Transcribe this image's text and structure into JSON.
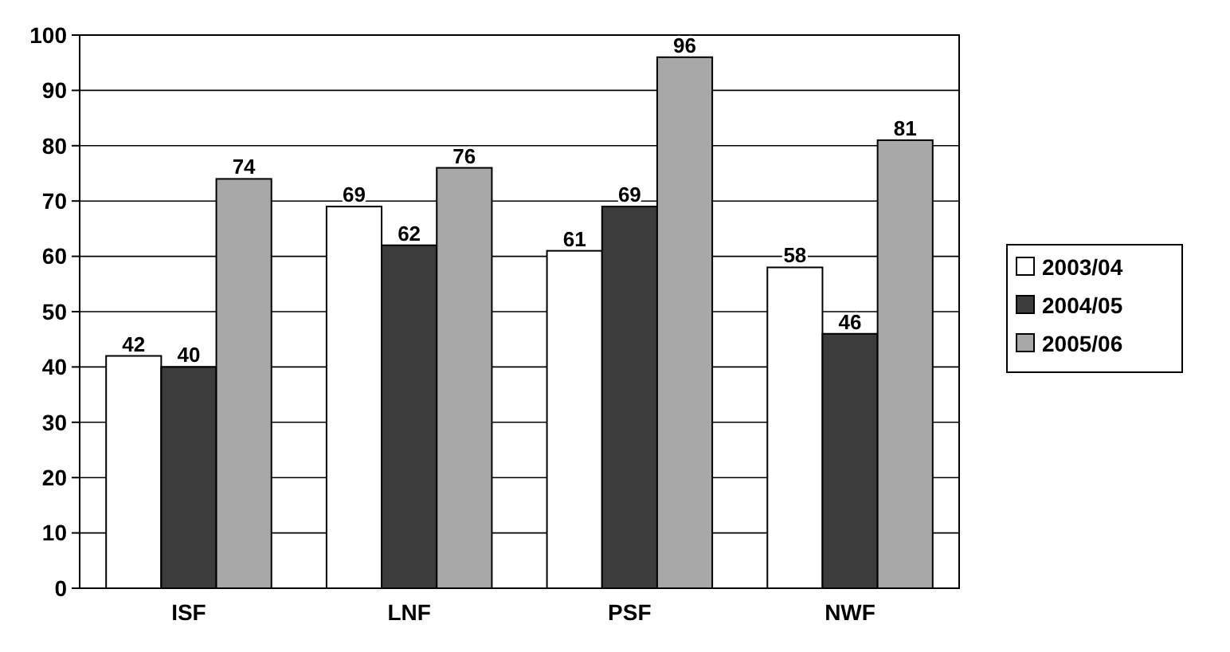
{
  "chart_data": {
    "type": "bar",
    "categories": [
      "ISF",
      "LNF",
      "PSF",
      "NWF"
    ],
    "series": [
      {
        "name": "2003/04",
        "color": "#ffffff",
        "values": [
          42,
          69,
          61,
          58
        ]
      },
      {
        "name": "2004/05",
        "color": "#3c3c3c",
        "values": [
          40,
          62,
          69,
          46
        ]
      },
      {
        "name": "2005/06",
        "color": "#a8a8a8",
        "values": [
          74,
          76,
          96,
          81
        ]
      }
    ],
    "ylim": [
      0,
      100
    ],
    "yticks": [
      0,
      10,
      20,
      30,
      40,
      50,
      60,
      70,
      80,
      90,
      100
    ],
    "grid": "y",
    "legend": "right",
    "data_labels": true
  }
}
